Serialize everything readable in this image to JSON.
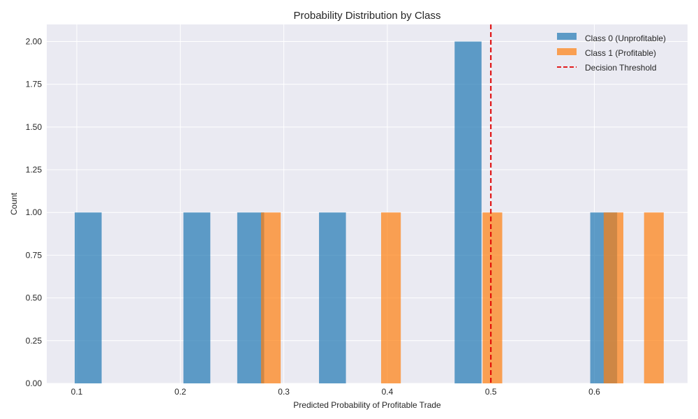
{
  "chart_data": {
    "type": "bar",
    "title": "Probability Distribution by Class",
    "xlabel": "Predicted Probability of Profitable Trade",
    "ylabel": "Count",
    "xlim": [
      0.071,
      0.69
    ],
    "ylim": [
      0,
      2.1
    ],
    "x_ticks": [
      0.1,
      0.2,
      0.3,
      0.4,
      0.5,
      0.6
    ],
    "x_tick_labels": [
      "0.1",
      "0.2",
      "0.3",
      "0.4",
      "0.5",
      "0.6"
    ],
    "y_ticks": [
      0,
      0.25,
      0.5,
      0.75,
      1.0,
      1.25,
      1.5,
      1.75,
      2.0
    ],
    "y_tick_labels": [
      "0.00",
      "0.25",
      "0.50",
      "0.75",
      "1.00",
      "1.25",
      "1.50",
      "1.75",
      "2.00"
    ],
    "grid": true,
    "legend_position": "top-right",
    "series": [
      {
        "name": "Class 0 (Unprofitable)",
        "color": "#1f77b4",
        "opacity": 0.7,
        "bins": [
          {
            "x0": 0.098,
            "x1": 0.124,
            "count": 1
          },
          {
            "x0": 0.203,
            "x1": 0.229,
            "count": 1
          },
          {
            "x0": 0.255,
            "x1": 0.281,
            "count": 1
          },
          {
            "x0": 0.334,
            "x1": 0.36,
            "count": 1
          },
          {
            "x0": 0.465,
            "x1": 0.491,
            "count": 2
          },
          {
            "x0": 0.596,
            "x1": 0.622,
            "count": 1
          }
        ]
      },
      {
        "name": "Class 1 (Profitable)",
        "color": "#ff7f0e",
        "opacity": 0.7,
        "bins": [
          {
            "x0": 0.278,
            "x1": 0.297,
            "count": 1
          },
          {
            "x0": 0.394,
            "x1": 0.413,
            "count": 1
          },
          {
            "x0": 0.492,
            "x1": 0.511,
            "count": 1
          },
          {
            "x0": 0.609,
            "x1": 0.628,
            "count": 1
          },
          {
            "x0": 0.648,
            "x1": 0.667,
            "count": 1
          }
        ]
      }
    ],
    "threshold": {
      "name": "Decision Threshold",
      "value": 0.5,
      "color": "#e00000",
      "style": "dashed"
    }
  }
}
